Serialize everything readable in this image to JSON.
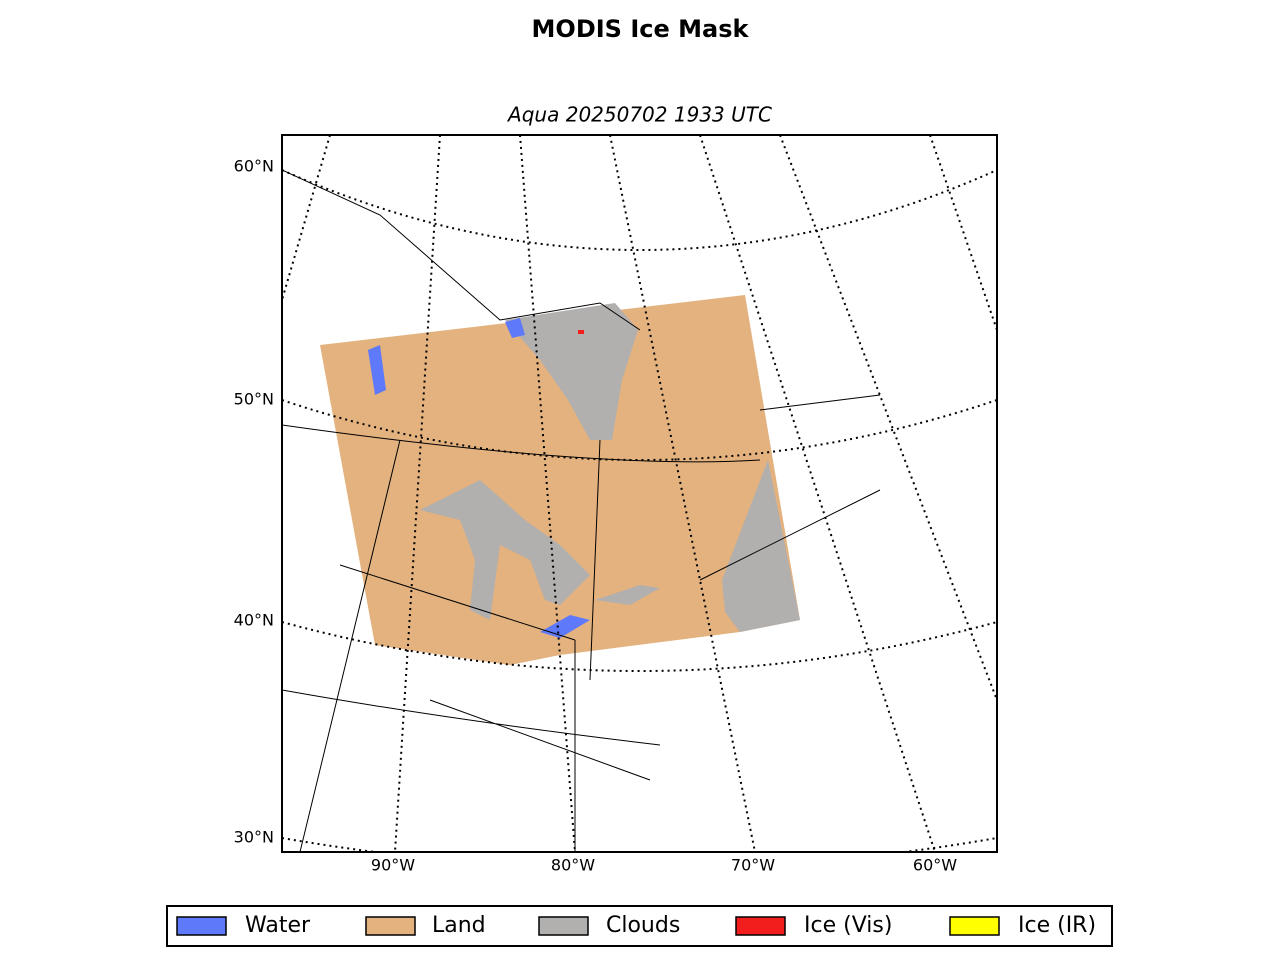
{
  "title": "MODIS Ice Mask",
  "subtitle": "Aqua 20250702 1933 UTC",
  "lat_labels": [
    "60°N",
    "50°N",
    "40°N",
    "30°N"
  ],
  "lon_labels": [
    "90°W",
    "80°W",
    "70°W",
    "60°W"
  ],
  "legend": [
    {
      "label": "Water",
      "color": "#5f79fb"
    },
    {
      "label": "Land",
      "color": "#e3b27e"
    },
    {
      "label": "Clouds",
      "color": "#b2afaf"
    },
    {
      "label": "Ice (Vis)",
      "color": "#f21e1e"
    },
    {
      "label": "Ice (IR)",
      "color": "#ffff00"
    }
  ]
}
